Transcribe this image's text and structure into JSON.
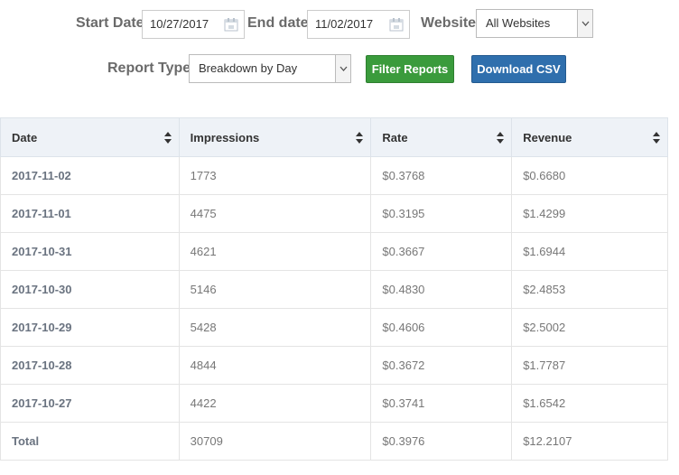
{
  "filters": {
    "start_date_label": "Start Date",
    "start_date_value": "10/27/2017",
    "end_date_label": "End date",
    "end_date_value": "11/02/2017",
    "website_label": "Website",
    "website_value": "All Websites",
    "report_type_label": "Report Type",
    "report_type_value": "Breakdown by Day",
    "filter_button": "Filter Reports",
    "download_button": "Download CSV"
  },
  "table": {
    "headers": [
      "Date",
      "Impressions",
      "Rate",
      "Revenue"
    ],
    "rows": [
      {
        "date": "2017-11-02",
        "impressions": "1773",
        "rate": "$0.3768",
        "revenue": "$0.6680"
      },
      {
        "date": "2017-11-01",
        "impressions": "4475",
        "rate": "$0.3195",
        "revenue": "$1.4299"
      },
      {
        "date": "2017-10-31",
        "impressions": "4621",
        "rate": "$0.3667",
        "revenue": "$1.6944"
      },
      {
        "date": "2017-10-30",
        "impressions": "5146",
        "rate": "$0.4830",
        "revenue": "$2.4853"
      },
      {
        "date": "2017-10-29",
        "impressions": "5428",
        "rate": "$0.4606",
        "revenue": "$2.5002"
      },
      {
        "date": "2017-10-28",
        "impressions": "4844",
        "rate": "$0.3672",
        "revenue": "$1.7787"
      },
      {
        "date": "2017-10-27",
        "impressions": "4422",
        "rate": "$0.3741",
        "revenue": "$1.6542"
      },
      {
        "date": "Total",
        "impressions": "30709",
        "rate": "$0.3976",
        "revenue": "$12.2107"
      }
    ]
  },
  "colors": {
    "filter_button": "#3a9b3c",
    "download_button": "#2f6fad",
    "header_bg": "#eef2f7"
  }
}
